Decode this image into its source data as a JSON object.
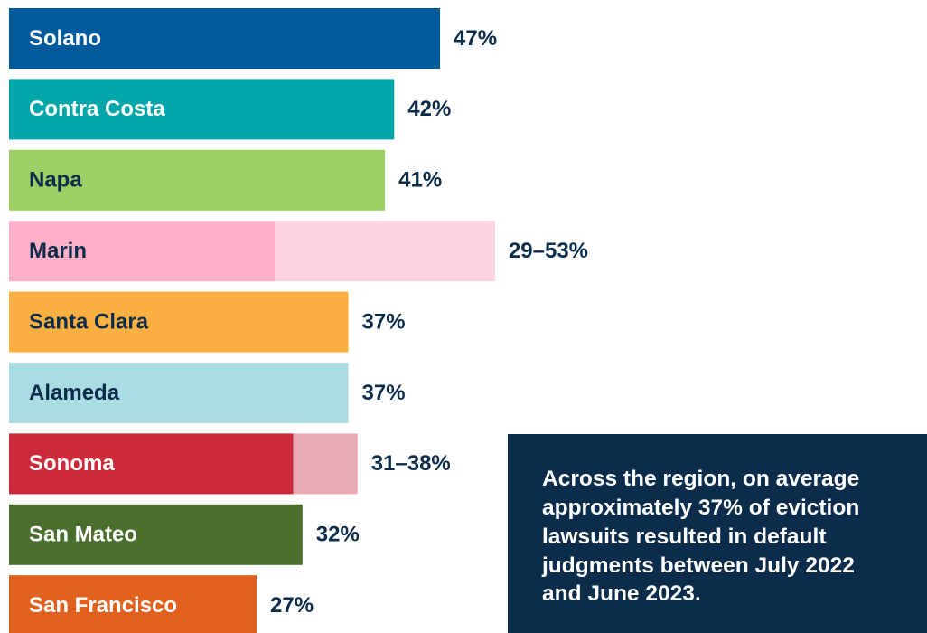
{
  "chart_data": {
    "type": "bar",
    "categories": [
      "Solano",
      "Contra Costa",
      "Napa",
      "Marin",
      "Santa Clara",
      "Alameda",
      "Sonoma",
      "San Mateo",
      "San Francisco"
    ],
    "values": [
      47,
      42,
      41,
      29,
      37,
      37,
      31,
      32,
      27
    ],
    "range_high": [
      null,
      null,
      null,
      53,
      null,
      null,
      38,
      null,
      null
    ],
    "value_labels": [
      "47%",
      "42%",
      "41%",
      "29–53%",
      "37%",
      "37%",
      "31–38%",
      "32%",
      "27%"
    ],
    "colors": [
      "#005a9c",
      "#00a6a8",
      "#9ccf66",
      "#feb0c9",
      "#fdb042",
      "#a9dde3",
      "#cc2a3a",
      "#4a6f2d",
      "#e0611f"
    ],
    "range_colors": [
      null,
      null,
      null,
      "#fed3e1",
      null,
      null,
      "#e9aab3",
      null,
      null
    ],
    "label_colors": [
      "#ffffff",
      "#ffffff",
      "#0b2c4b",
      "#0b2c4b",
      "#0b2c4b",
      "#0b2c4b",
      "#ffffff",
      "#ffffff",
      "#ffffff"
    ],
    "annotation": "Across the region, on average approximately 37% of eviction lawsuits resulted in default judgments between July 2022 and June 2023."
  }
}
